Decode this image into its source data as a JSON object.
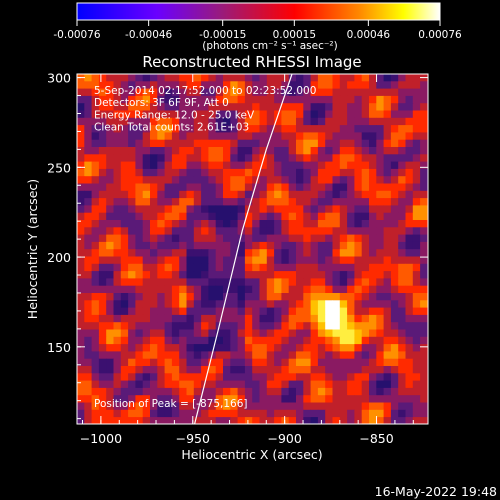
{
  "chart_data": {
    "type": "heatmap",
    "title": "Reconstructed RHESSI Image",
    "colorbar": {
      "ticks": [
        "-0.00076",
        "-0.00046",
        "-0.00015",
        "0.00015",
        "0.00046",
        "0.00076"
      ],
      "tick_values": [
        -0.00076,
        -0.00046,
        -0.00015,
        0.00015,
        0.00046,
        0.00076
      ],
      "range": [
        -0.00076,
        0.00076
      ],
      "unit_label": "(photons cm⁻² s⁻¹ asec⁻²)",
      "colors": [
        "#0000ff",
        "#6a00ff",
        "#9a1b7a",
        "#ff0000",
        "#ff8a00",
        "#ffff00",
        "#ffffff"
      ]
    },
    "xlabel": "Heliocentric X (arcsec)",
    "ylabel": "Heliocentric Y (arcsec)",
    "xlim": [
      -1013,
      -822
    ],
    "ylim": [
      107,
      302
    ],
    "x_ticks": [
      {
        "value": -1000,
        "label": "−1000"
      },
      {
        "value": -950,
        "label": "−950"
      },
      {
        "value": -900,
        "label": "−900"
      },
      {
        "value": -850,
        "label": "−850"
      }
    ],
    "y_ticks": [
      {
        "value": 150,
        "label": "150"
      },
      {
        "value": 200,
        "label": "200"
      },
      {
        "value": 250,
        "label": "250"
      },
      {
        "value": 300,
        "label": "300"
      }
    ],
    "annotations": [
      "5-Sep-2014 02:17:52.000 to 02:23:52.000",
      "Detectors: 3F 6F 9F, Att 0",
      "Energy Range: 12.0 - 25.0 keV",
      "Clean    Total counts: 2.61E+03"
    ],
    "peak_label": "Position of Peak = [-875,166]",
    "peak": {
      "x": -875,
      "y": 166
    },
    "limb_curve": [
      [
        -949,
        107
      ],
      [
        -936,
        160
      ],
      [
        -923,
        215
      ],
      [
        -910,
        260
      ],
      [
        -896,
        302
      ]
    ],
    "timestamp": "16-May-2022 19:48"
  }
}
